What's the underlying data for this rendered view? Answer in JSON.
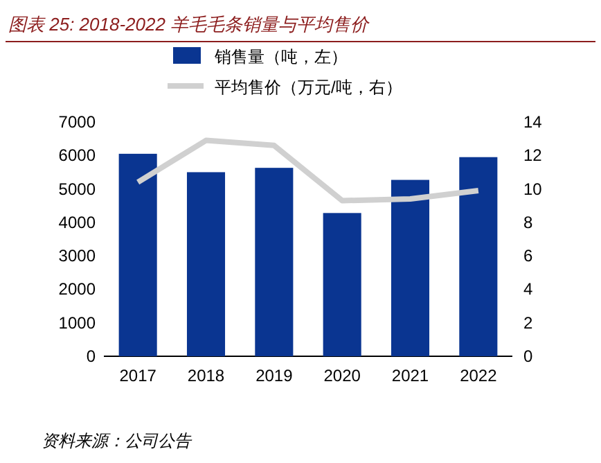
{
  "chart_data": {
    "type": "bar",
    "title": "图表 25:  2018-2022 羊毛毛条销量与平均售价",
    "categories": [
      "2017",
      "2018",
      "2019",
      "2020",
      "2021",
      "2022"
    ],
    "series": [
      {
        "name": "销售量（吨，左）",
        "color": "#0a3591",
        "values": [
          6050,
          5500,
          5630,
          4280,
          5270,
          5950
        ]
      },
      {
        "name": "平均售价（万元/吨，右）",
        "type": "line",
        "axis": "y2",
        "color": "#d0d0d0",
        "values": [
          10.4,
          12.9,
          12.6,
          9.3,
          9.4,
          9.9
        ]
      }
    ],
    "ylim": [
      0,
      7000
    ],
    "yticks": [
      0,
      1000,
      2000,
      3000,
      4000,
      5000,
      6000,
      7000
    ],
    "y2lim": [
      0,
      14
    ],
    "y2ticks": [
      0,
      2,
      4,
      6,
      8,
      10,
      12,
      14
    ],
    "legend": "top",
    "grid": false,
    "annotations": [
      "资料来源：公司公告"
    ]
  }
}
